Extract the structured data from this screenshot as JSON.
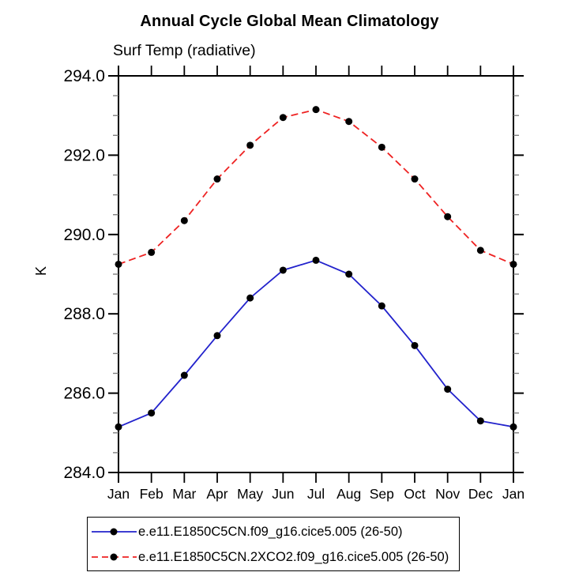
{
  "chart_data": {
    "type": "line",
    "title": "Annual Cycle Global Mean Climatology",
    "subtitle": "Surf Temp (radiative)",
    "ylabel": "K",
    "ylim": [
      284.0,
      294.0
    ],
    "ytick_step": 2.0,
    "yminor_step": 0.5,
    "ytick_labels": [
      "284.0",
      "286.0",
      "288.0",
      "290.0",
      "292.0",
      "294.0"
    ],
    "grid": false,
    "legend_position": "bottom",
    "x": [
      "Jan",
      "Feb",
      "Mar",
      "Apr",
      "May",
      "Jun",
      "Jul",
      "Aug",
      "Sep",
      "Oct",
      "Nov",
      "Dec",
      "Jan"
    ],
    "series": [
      {
        "name": "e.e11.E1850C5CN.f09_g16.cice5.005 (26-50)",
        "color": "#2222cc",
        "line_style": "solid",
        "marker": "filled-circle",
        "marker_color": "#000000",
        "values": [
          285.15,
          285.5,
          286.45,
          287.45,
          288.4,
          289.1,
          289.35,
          289.0,
          288.2,
          287.2,
          286.1,
          285.3,
          285.15
        ]
      },
      {
        "name": "e.e11.E1850C5CN.2XCO2.f09_g16.cice5.005 (26-50)",
        "color": "#ee2222",
        "line_style": "dashed",
        "marker": "filled-circle",
        "marker_color": "#000000",
        "values": [
          289.25,
          289.55,
          290.35,
          291.4,
          292.25,
          292.95,
          293.15,
          292.85,
          292.2,
          291.4,
          290.45,
          289.6,
          289.25
        ]
      }
    ]
  },
  "colors": {
    "axis": "#000000",
    "minor_tick": "#808080",
    "background": "#ffffff"
  }
}
